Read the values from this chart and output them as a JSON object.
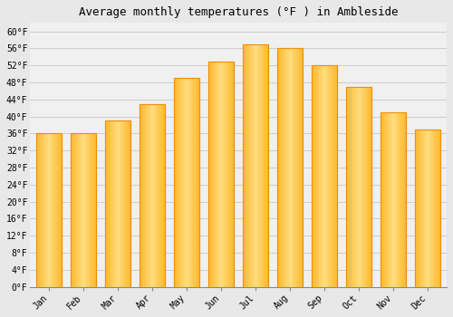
{
  "title": "Average monthly temperatures (°F ) in Ambleside",
  "months": [
    "Jan",
    "Feb",
    "Mar",
    "Apr",
    "May",
    "Jun",
    "Jul",
    "Aug",
    "Sep",
    "Oct",
    "Nov",
    "Dec"
  ],
  "values": [
    36,
    36,
    39,
    43,
    49,
    53,
    57,
    56,
    52,
    47,
    41,
    37
  ],
  "bar_color_main": "#FDB92E",
  "bar_color_light": "#FFDD80",
  "bar_color_dark": "#F0900A",
  "background_color": "#e8e8e8",
  "plot_bg_color": "#f0f0f0",
  "ylim": [
    0,
    62
  ],
  "yticks": [
    0,
    4,
    8,
    12,
    16,
    20,
    24,
    28,
    32,
    36,
    40,
    44,
    48,
    52,
    56,
    60
  ],
  "ytick_labels": [
    "0°F",
    "4°F",
    "8°F",
    "12°F",
    "16°F",
    "20°F",
    "24°F",
    "28°F",
    "32°F",
    "36°F",
    "40°F",
    "44°F",
    "48°F",
    "52°F",
    "56°F",
    "60°F"
  ],
  "title_fontsize": 9,
  "tick_fontsize": 7,
  "grid_color": "#cccccc",
  "font_family": "monospace"
}
